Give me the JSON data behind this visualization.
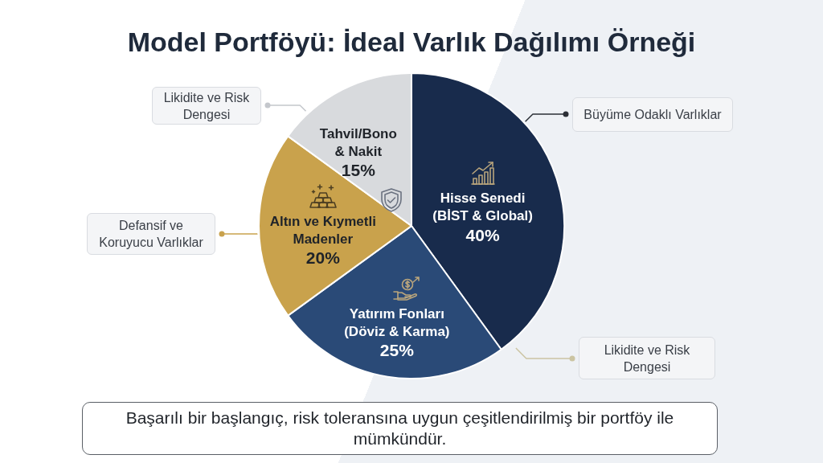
{
  "chart_data": {
    "type": "pie",
    "title": "Model Portföyü: İdeal Varlık Dağılımı Örneği",
    "categories": [
      "Hisse Senedi (BİST & Global)",
      "Yatırım Fonları (Döviz & Karma)",
      "Altın ve Kıymetli Madenler",
      "Tahvil/Bono & Nakit"
    ],
    "values": [
      40,
      25,
      20,
      15
    ],
    "colors": [
      "#182b4c",
      "#2a4a77",
      "#c9a24c",
      "#d8dadd"
    ],
    "value_labels": [
      "40%",
      "25%",
      "20%",
      "15%"
    ],
    "annotations": [
      "Büyüme Odaklı Varlıklar",
      "Likidite ve Risk Dengesi",
      "Defansif ve Koruyucu Varlıklar",
      "Likidite ve Risk Dengesi",
      "Başarılı bir başlangıç, risk toleransına uygun çeşitlendirilmiş bir portföy ile mümkündür."
    ]
  }
}
